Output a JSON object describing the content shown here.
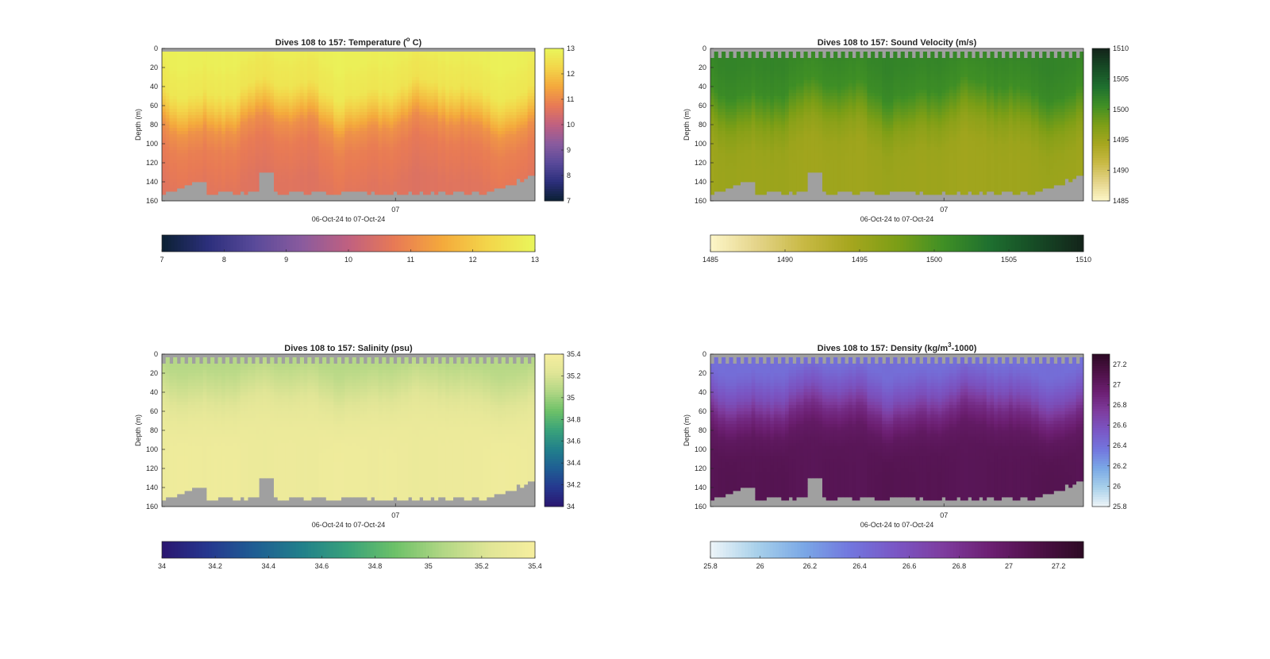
{
  "figure": {
    "background": "#ffffff"
  },
  "chart_data": [
    {
      "type": "heatmap",
      "title": "Dives 108 to 157: Temperature (",
      "title_sup": "o",
      "title_after": " C)",
      "ylabel": "Depth (m)",
      "xlabel": "06-Oct-24 to 07-Oct-24",
      "x_ticks": [
        "07"
      ],
      "y_ticks": [
        "0",
        "20",
        "40",
        "60",
        "80",
        "100",
        "120",
        "140",
        "160"
      ],
      "ylim": [
        0,
        160
      ],
      "y_reversed": true,
      "colorbar_ticks": [
        "7",
        "8",
        "9",
        "10",
        "11",
        "12",
        "13"
      ],
      "horizontal_colorbar_ticks": [
        "7",
        "8",
        "9",
        "10",
        "11",
        "12",
        "13"
      ],
      "clim": [
        7,
        13
      ],
      "colormap": [
        "#0b2033",
        "#2c2f7c",
        "#5a4a9a",
        "#8a5b9e",
        "#c06080",
        "#e87a55",
        "#f4a93c",
        "#f3d64a",
        "#e9f65b"
      ],
      "nodata_color": "#a0a0a0",
      "profile": {
        "depth_m": [
          0,
          10,
          20,
          40,
          60,
          80,
          100,
          120,
          140,
          160
        ],
        "value": [
          12.8,
          12.8,
          12.7,
          12.6,
          11.9,
          11.1,
          10.8,
          10.7,
          10.6,
          10.6
        ]
      }
    },
    {
      "type": "heatmap",
      "title": "Dives 108 to 157: Sound Velocity (m/s)",
      "ylabel": "Depth (m)",
      "xlabel": "06-Oct-24 to 07-Oct-24",
      "x_ticks": [
        "07"
      ],
      "y_ticks": [
        "0",
        "20",
        "40",
        "60",
        "80",
        "100",
        "120",
        "140",
        "160"
      ],
      "ylim": [
        0,
        160
      ],
      "y_reversed": true,
      "colorbar_ticks": [
        "1485",
        "1490",
        "1495",
        "1500",
        "1505",
        "1510"
      ],
      "horizontal_colorbar_ticks": [
        "1485",
        "1490",
        "1495",
        "1500",
        "1505",
        "1510"
      ],
      "clim": [
        1485,
        1510
      ],
      "colormap": [
        "#fdf6c8",
        "#e4d489",
        "#c8b944",
        "#a6a61e",
        "#7c9e16",
        "#3f8f25",
        "#1e6f2f",
        "#164a25",
        "#13231a"
      ],
      "nodata_color": "#a0a0a0",
      "profile": {
        "depth_m": [
          0,
          10,
          20,
          40,
          60,
          80,
          100,
          120,
          140,
          160
        ],
        "value": [
          1501.5,
          1501.5,
          1501.3,
          1500.8,
          1498.5,
          1496.3,
          1495.2,
          1495.0,
          1495.0,
          1495.0
        ]
      }
    },
    {
      "type": "heatmap",
      "title": "Dives 108 to 157: Salinity (psu)",
      "ylabel": "Depth (m)",
      "xlabel": "06-Oct-24 to 07-Oct-24",
      "x_ticks": [
        "07"
      ],
      "y_ticks": [
        "0",
        "20",
        "40",
        "60",
        "80",
        "100",
        "120",
        "140",
        "160"
      ],
      "ylim": [
        0,
        160
      ],
      "y_reversed": true,
      "colorbar_ticks": [
        "34",
        "34.2",
        "34.4",
        "34.6",
        "34.8",
        "35",
        "35.2",
        "35.4"
      ],
      "horizontal_colorbar_ticks": [
        "34",
        "34.2",
        "34.4",
        "34.6",
        "34.8",
        "35",
        "35.2",
        "35.4"
      ],
      "clim": [
        34,
        35.4
      ],
      "colormap": [
        "#2a1670",
        "#25388f",
        "#1f5e93",
        "#21808b",
        "#39a27a",
        "#6dc168",
        "#b0d684",
        "#e0e596",
        "#f6ee9e"
      ],
      "nodata_color": "#a0a0a0",
      "profile": {
        "depth_m": [
          0,
          10,
          20,
          40,
          60,
          80,
          100,
          120,
          140,
          160
        ],
        "value": [
          35.06,
          35.08,
          35.12,
          35.2,
          35.28,
          35.32,
          35.33,
          35.33,
          35.33,
          35.33
        ]
      }
    },
    {
      "type": "heatmap",
      "title": "Dives 108 to 157: Density (kg/m",
      "title_sup": "3",
      "title_after": "-1000)",
      "ylabel": "Depth (m)",
      "xlabel": "06-Oct-24 to 07-Oct-24",
      "x_ticks": [
        "07"
      ],
      "y_ticks": [
        "0",
        "20",
        "40",
        "60",
        "80",
        "100",
        "120",
        "140",
        "160"
      ],
      "ylim": [
        0,
        160
      ],
      "y_reversed": true,
      "colorbar_ticks": [
        "25.8",
        "26",
        "26.2",
        "26.4",
        "26.6",
        "26.8",
        "27",
        "27.2"
      ],
      "horizontal_colorbar_ticks": [
        "25.8",
        "26",
        "26.2",
        "26.4",
        "26.6",
        "26.8",
        "27",
        "27.2"
      ],
      "clim": [
        25.8,
        27.3
      ],
      "colormap": [
        "#eef5f8",
        "#a8d0ea",
        "#7aa8e6",
        "#7276de",
        "#7a56c4",
        "#7e3c9e",
        "#6c1f72",
        "#4e1148",
        "#2d0a24"
      ],
      "nodata_color": "#a0a0a0",
      "profile": {
        "depth_m": [
          0,
          10,
          20,
          40,
          60,
          80,
          100,
          120,
          140,
          160
        ],
        "value": [
          26.4,
          26.4,
          26.45,
          26.6,
          26.85,
          27.0,
          27.05,
          27.06,
          27.06,
          27.06
        ]
      }
    }
  ]
}
